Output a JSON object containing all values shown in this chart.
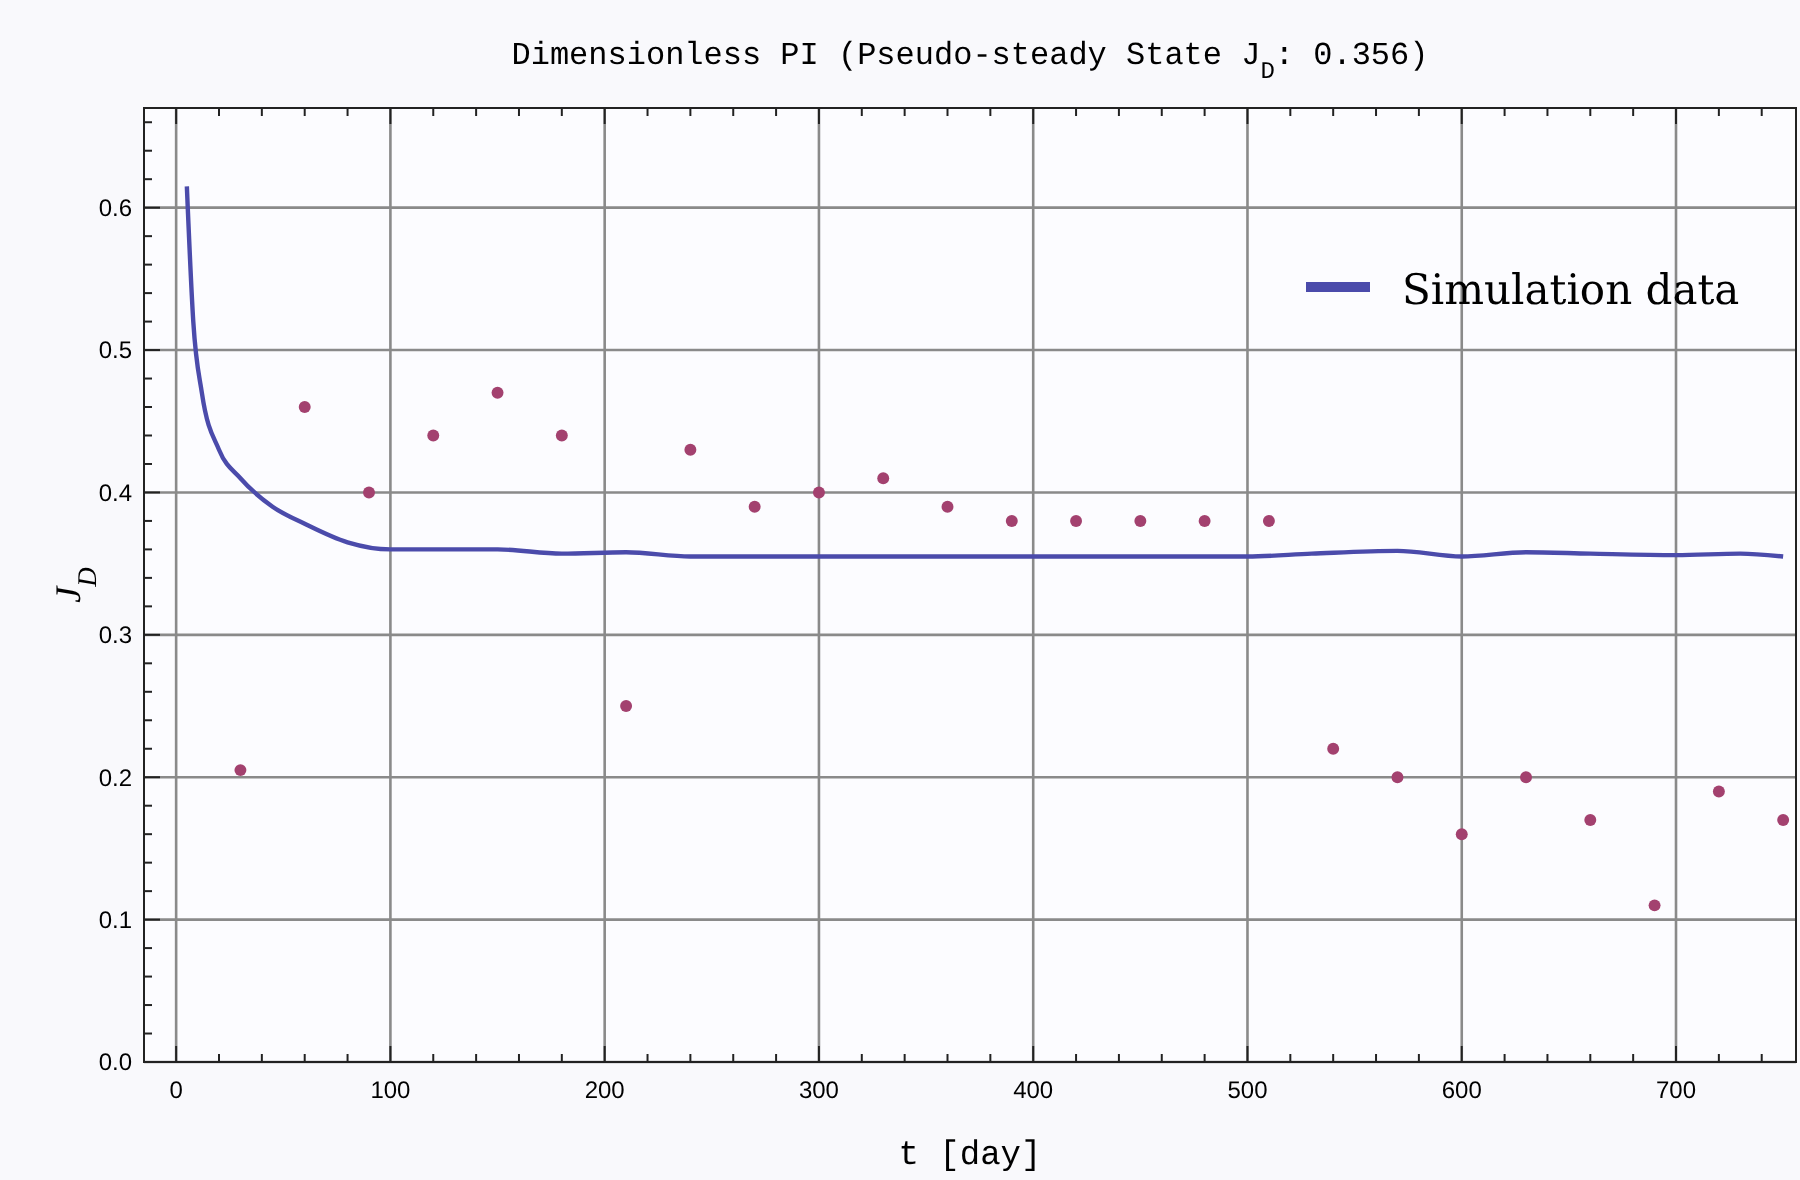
{
  "chart_data": {
    "type": "line",
    "title": "Dimensionless PI (Pseudo-steady State J$_{D}$: 0.356)",
    "xlabel": "t [day]",
    "ylabel": "J$_{D}$",
    "xlim": [
      -15,
      756
    ],
    "ylim": [
      0,
      0.67
    ],
    "xticks": [
      {
        "value": 0,
        "label": "0"
      },
      {
        "value": 20,
        "label": null
      },
      {
        "value": 40,
        "label": null
      },
      {
        "value": 60,
        "label": null
      },
      {
        "value": 80,
        "label": null
      },
      {
        "value": 100,
        "label": "100"
      },
      {
        "value": 120,
        "label": null
      },
      {
        "value": 140,
        "label": null
      },
      {
        "value": 160,
        "label": null
      },
      {
        "value": 180,
        "label": null
      },
      {
        "value": 200,
        "label": "200"
      },
      {
        "value": 220,
        "label": null
      },
      {
        "value": 240,
        "label": null
      },
      {
        "value": 260,
        "label": null
      },
      {
        "value": 280,
        "label": null
      },
      {
        "value": 300,
        "label": "300"
      },
      {
        "value": 320,
        "label": null
      },
      {
        "value": 340,
        "label": null
      },
      {
        "value": 360,
        "label": null
      },
      {
        "value": 380,
        "label": null
      },
      {
        "value": 400,
        "label": "400"
      },
      {
        "value": 420,
        "label": null
      },
      {
        "value": 440,
        "label": null
      },
      {
        "value": 460,
        "label": null
      },
      {
        "value": 480,
        "label": null
      },
      {
        "value": 500,
        "label": "500"
      },
      {
        "value": 520,
        "label": null
      },
      {
        "value": 540,
        "label": null
      },
      {
        "value": 560,
        "label": null
      },
      {
        "value": 580,
        "label": null
      },
      {
        "value": 600,
        "label": "600"
      },
      {
        "value": 620,
        "label": null
      },
      {
        "value": 640,
        "label": null
      },
      {
        "value": 660,
        "label": null
      },
      {
        "value": 680,
        "label": null
      },
      {
        "value": 700,
        "label": "700"
      },
      {
        "value": 720,
        "label": null
      },
      {
        "value": 740,
        "label": null
      }
    ],
    "yticks": [
      {
        "value": 0,
        "label": "0.0"
      },
      {
        "value": 0.02,
        "label": null
      },
      {
        "value": 0.04,
        "label": null
      },
      {
        "value": 0.06,
        "label": null
      },
      {
        "value": 0.08,
        "label": null
      },
      {
        "value": 0.1,
        "label": "0.1"
      },
      {
        "value": 0.12,
        "label": null
      },
      {
        "value": 0.14,
        "label": null
      },
      {
        "value": 0.16,
        "label": null
      },
      {
        "value": 0.18,
        "label": null
      },
      {
        "value": 0.2,
        "label": "0.2"
      },
      {
        "value": 0.22,
        "label": null
      },
      {
        "value": 0.24,
        "label": null
      },
      {
        "value": 0.26,
        "label": null
      },
      {
        "value": 0.28,
        "label": null
      },
      {
        "value": 0.3,
        "label": "0.3"
      },
      {
        "value": 0.32,
        "label": null
      },
      {
        "value": 0.34,
        "label": null
      },
      {
        "value": 0.36,
        "label": null
      },
      {
        "value": 0.38,
        "label": null
      },
      {
        "value": 0.4,
        "label": "0.4"
      },
      {
        "value": 0.42,
        "label": null
      },
      {
        "value": 0.44,
        "label": null
      },
      {
        "value": 0.46,
        "label": null
      },
      {
        "value": 0.48,
        "label": null
      },
      {
        "value": 0.5,
        "label": "0.5"
      },
      {
        "value": 0.52,
        "label": null
      },
      {
        "value": 0.54,
        "label": null
      },
      {
        "value": 0.56,
        "label": null
      },
      {
        "value": 0.58,
        "label": null
      },
      {
        "value": 0.6,
        "label": "0.6"
      },
      {
        "value": 0.62,
        "label": null
      },
      {
        "value": 0.64,
        "label": null
      },
      {
        "value": 0.66,
        "label": null
      }
    ],
    "grid": true,
    "legend": "top right",
    "series": [
      {
        "name": "Simulation data",
        "color": "#4b4bab",
        "x": [
          5,
          8,
          12,
          20,
          30,
          45,
          60,
          80,
          100,
          150,
          180,
          210,
          240,
          300,
          400,
          500,
          530,
          570,
          600,
          630,
          660,
          700,
          730,
          750
        ],
        "values": [
          0.615,
          0.52,
          0.47,
          0.43,
          0.41,
          0.39,
          0.378,
          0.365,
          0.36,
          0.36,
          0.357,
          0.358,
          0.355,
          0.355,
          0.355,
          0.355,
          0.357,
          0.359,
          0.355,
          0.358,
          0.357,
          0.356,
          0.357,
          0.355
        ]
      },
      {
        "type": "scatter",
        "color": "#a3416f",
        "marker": "circle",
        "x": [
          30,
          60,
          90,
          120,
          150,
          180,
          210,
          240,
          270,
          300,
          330,
          360,
          390,
          420,
          450,
          480,
          510,
          540,
          570,
          600,
          630,
          660,
          690,
          720,
          750
        ],
        "values": [
          0.205,
          0.46,
          0.4,
          0.44,
          0.47,
          0.44,
          0.25,
          0.43,
          0.39,
          0.4,
          0.41,
          0.39,
          0.38,
          0.38,
          0.38,
          0.38,
          0.38,
          0.22,
          0.2,
          0.16,
          0.2,
          0.17,
          0.11,
          0.19,
          0.17
        ]
      }
    ]
  }
}
